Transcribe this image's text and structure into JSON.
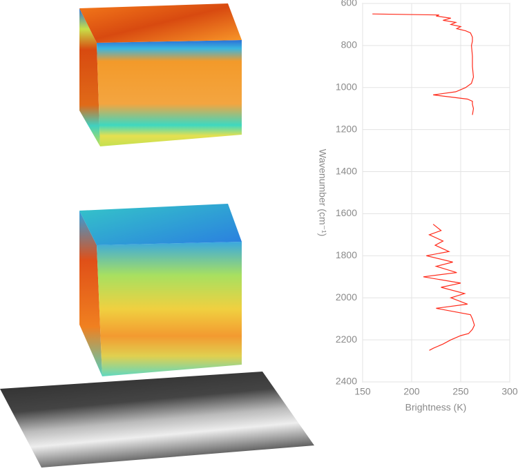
{
  "chart_data": {
    "type": "line",
    "orientation": "vertical",
    "xlabel": "Wavenumber (cm⁻¹)",
    "ylabel": "Brightness (K)",
    "x": [
      650,
      655,
      660,
      670,
      680,
      690,
      700,
      710,
      720,
      730,
      740,
      760,
      780,
      800,
      850,
      900,
      950,
      980,
      1000,
      1020,
      1035,
      1045,
      1055,
      1065,
      1080,
      1100,
      1130,
      null,
      1650,
      1680,
      1700,
      1730,
      1750,
      1780,
      1800,
      1830,
      1850,
      1880,
      1900,
      1930,
      1950,
      1980,
      2000,
      2030,
      2050,
      2080,
      2100,
      2130,
      2150,
      2170,
      2180,
      2200,
      2220,
      2240,
      2250
    ],
    "series": [
      {
        "color": "#ff2a1a",
        "values": [
          160,
          228,
          225,
          240,
          232,
          245,
          240,
          250,
          246,
          255,
          260,
          262,
          262,
          261,
          262,
          262,
          263,
          261,
          255,
          245,
          222,
          240,
          257,
          262,
          262,
          263,
          262,
          null,
          222,
          230,
          218,
          232,
          224,
          238,
          215,
          242,
          225,
          246,
          212,
          250,
          230,
          254,
          240,
          257,
          225,
          260,
          262,
          264,
          262,
          258,
          250,
          240,
          232,
          222,
          218
        ]
      }
    ],
    "xlim": [
      600,
      2400
    ],
    "xticks": [
      600,
      800,
      1000,
      1200,
      1400,
      1600,
      1800,
      2000,
      2200,
      2400
    ],
    "ylim": [
      150,
      300
    ],
    "yticks": [
      150,
      200,
      250,
      300
    ],
    "grid": true
  }
}
